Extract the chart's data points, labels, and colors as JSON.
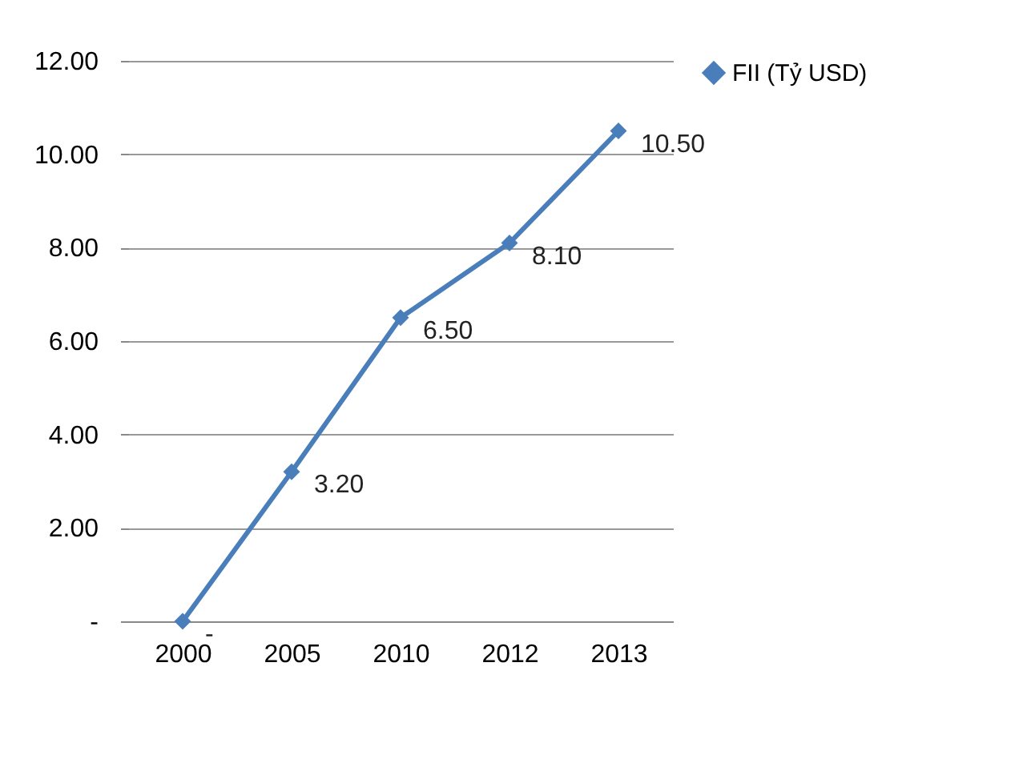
{
  "chart_data": {
    "type": "line",
    "categories": [
      "2000",
      "2005",
      "2010",
      "2012",
      "2013"
    ],
    "series": [
      {
        "name": "FII (Tỷ USD)",
        "color": "#4a7ebb",
        "values": [
          0,
          3.2,
          6.5,
          8.1,
          10.5
        ],
        "value_labels": [
          "-",
          "3.20",
          "6.50",
          "8.10",
          "10.50"
        ]
      }
    ],
    "ylim": [
      0,
      12
    ],
    "yticks": [
      {
        "value": 0,
        "label": "-"
      },
      {
        "value": 2,
        "label": "2.00"
      },
      {
        "value": 4,
        "label": "4.00"
      },
      {
        "value": 6,
        "label": "6.00"
      },
      {
        "value": 8,
        "label": "8.00"
      },
      {
        "value": 10,
        "label": "10.00"
      },
      {
        "value": 12,
        "label": "12.00"
      }
    ],
    "grid": "y",
    "legend": "right",
    "marker": "diamond",
    "line_style": "solid"
  }
}
